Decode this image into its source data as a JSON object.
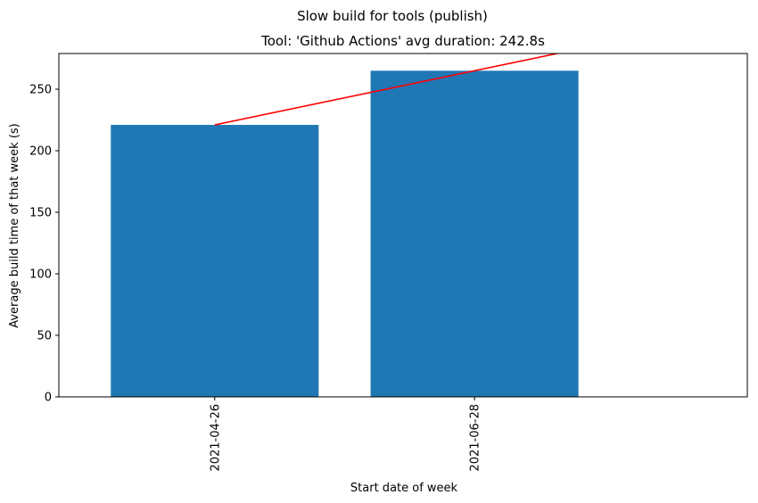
{
  "chart_data": {
    "type": "bar",
    "suptitle": "Slow build for tools (publish)",
    "title": "Tool: 'Github Actions' avg duration: 242.8s",
    "xlabel": "Start date of week",
    "ylabel": "Average build time of that week (s)",
    "categories": [
      "2021-04-26",
      "2021-06-28"
    ],
    "values": [
      221,
      265
    ],
    "ylim": [
      0,
      279
    ],
    "yticks": [
      0,
      50,
      100,
      150,
      200,
      250
    ],
    "bar_color": "#1f77b4",
    "trend_line": {
      "color": "#ff0000",
      "points": [
        {
          "x": "2021-04-26",
          "y": 221
        },
        {
          "x": "2021-06-28",
          "y": 265
        }
      ]
    },
    "grid": false
  }
}
